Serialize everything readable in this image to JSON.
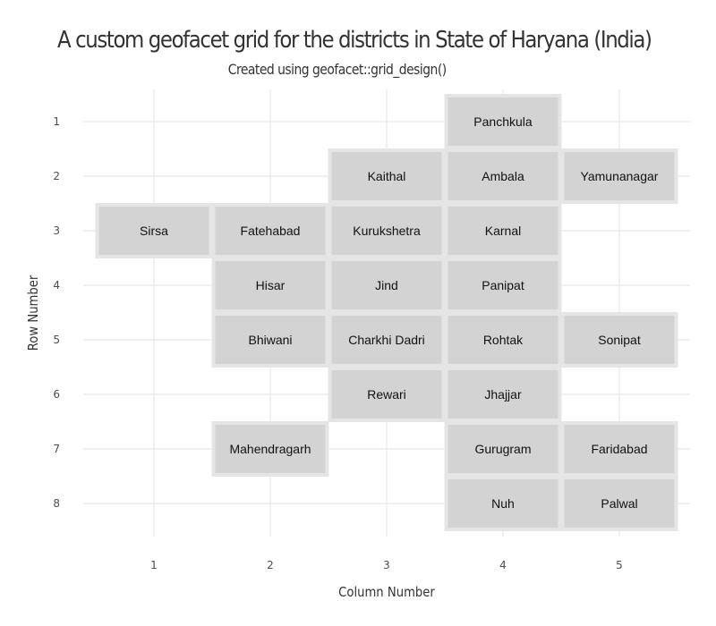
{
  "chart_data": {
    "type": "heatmap",
    "title": "A custom geofacet grid for the districts in State of Haryana (India)",
    "subtitle": "Created using geofacet::grid_design()",
    "xlabel": "Column Number",
    "ylabel": "Row Number",
    "x_ticks": [
      1,
      2,
      3,
      4,
      5
    ],
    "y_ticks": [
      1,
      2,
      3,
      4,
      5,
      6,
      7,
      8
    ],
    "xlim": [
      0.5,
      5.5
    ],
    "ylim": [
      0.5,
      8.5
    ],
    "y_reversed": true,
    "grid": true,
    "tile_fill": "#d3d3d3",
    "tile_border": "#e5e5e5",
    "grid_color": "#ebebeb",
    "tiles": [
      {
        "name": "Panchkula",
        "col": 4,
        "row": 1
      },
      {
        "name": "Kaithal",
        "col": 3,
        "row": 2
      },
      {
        "name": "Ambala",
        "col": 4,
        "row": 2
      },
      {
        "name": "Yamunanagar",
        "col": 5,
        "row": 2
      },
      {
        "name": "Sirsa",
        "col": 1,
        "row": 3
      },
      {
        "name": "Fatehabad",
        "col": 2,
        "row": 3
      },
      {
        "name": "Kurukshetra",
        "col": 3,
        "row": 3
      },
      {
        "name": "Karnal",
        "col": 4,
        "row": 3
      },
      {
        "name": "Hisar",
        "col": 2,
        "row": 4
      },
      {
        "name": "Jind",
        "col": 3,
        "row": 4
      },
      {
        "name": "Panipat",
        "col": 4,
        "row": 4
      },
      {
        "name": "Bhiwani",
        "col": 2,
        "row": 5
      },
      {
        "name": "Charkhi Dadri",
        "col": 3,
        "row": 5
      },
      {
        "name": "Rohtak",
        "col": 4,
        "row": 5
      },
      {
        "name": "Sonipat",
        "col": 5,
        "row": 5
      },
      {
        "name": "Rewari",
        "col": 3,
        "row": 6
      },
      {
        "name": "Jhajjar",
        "col": 4,
        "row": 6
      },
      {
        "name": "Mahendragarh",
        "col": 2,
        "row": 7
      },
      {
        "name": "Gurugram",
        "col": 4,
        "row": 7
      },
      {
        "name": "Faridabad",
        "col": 5,
        "row": 7
      },
      {
        "name": "Nuh",
        "col": 4,
        "row": 8
      },
      {
        "name": "Palwal",
        "col": 5,
        "row": 8
      }
    ]
  }
}
